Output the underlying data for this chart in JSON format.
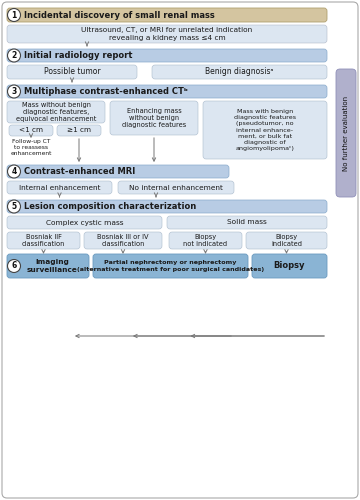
{
  "bg_color": "#ffffff",
  "header_bg_tan": "#d4c5a0",
  "header_bg_blue": "#b8cce4",
  "box_light_blue": "#dce6f1",
  "no_further_bg": "#b0b0cc",
  "outcome_bg": "#8ab4d4",
  "arrow_color": "#777777",
  "text_dark": "#1a1a1a",
  "step1_title": "Incidental discovery of small renal mass",
  "step1_desc": "Ultrasound, CT, or MRI for unrelated indication\nrevealing a kidney mass ≤4 cm",
  "step2_title": "Initial radiology report",
  "step3_title": "Multiphase contrast-enhanced CTᵇ",
  "step4_title": "Contrast-enhanced MRI",
  "step5_title": "Lesion composition characterization",
  "box2a": "Possible tumor",
  "box2b": "Benign diagnosisᵃ",
  "box3a_top": "Mass without benign\ndiagnostic features,\nequivocal enhancement",
  "box3b": "Enhancing mass\nwithout benign\ndiagnostic features",
  "box3c": "Mass with benign\ndiagnostic features\n(pseudotumor, no\ninternal enhance-\nment, or bulk fat\ndiagnostic of\nangiomyolipomaᶜ)",
  "box3a1": "<1 cm",
  "box3a2": "≥1 cm",
  "box3a_followup": "Follow-up CT\nto reassess\nenhancement",
  "box4a": "Internal enhancement",
  "box4b": "No internal enhancement",
  "box5a_head": "Complex cystic mass",
  "box5b_head": "Solid mass",
  "box5a1": "Bosniak IIF\nclassification",
  "box5a2": "Bosniak III or IV\nclassification",
  "box5b1": "Biopsy\nnot indicated",
  "box5b2": "Biopsy\nindicated",
  "out1": "Imaging\nsurveillance",
  "out2": "Partial nephrectomy or nephrectomy\n(alternative treatment for poor surgical candidates)",
  "out3": "Biopsy",
  "no_further": "No further evaluation"
}
